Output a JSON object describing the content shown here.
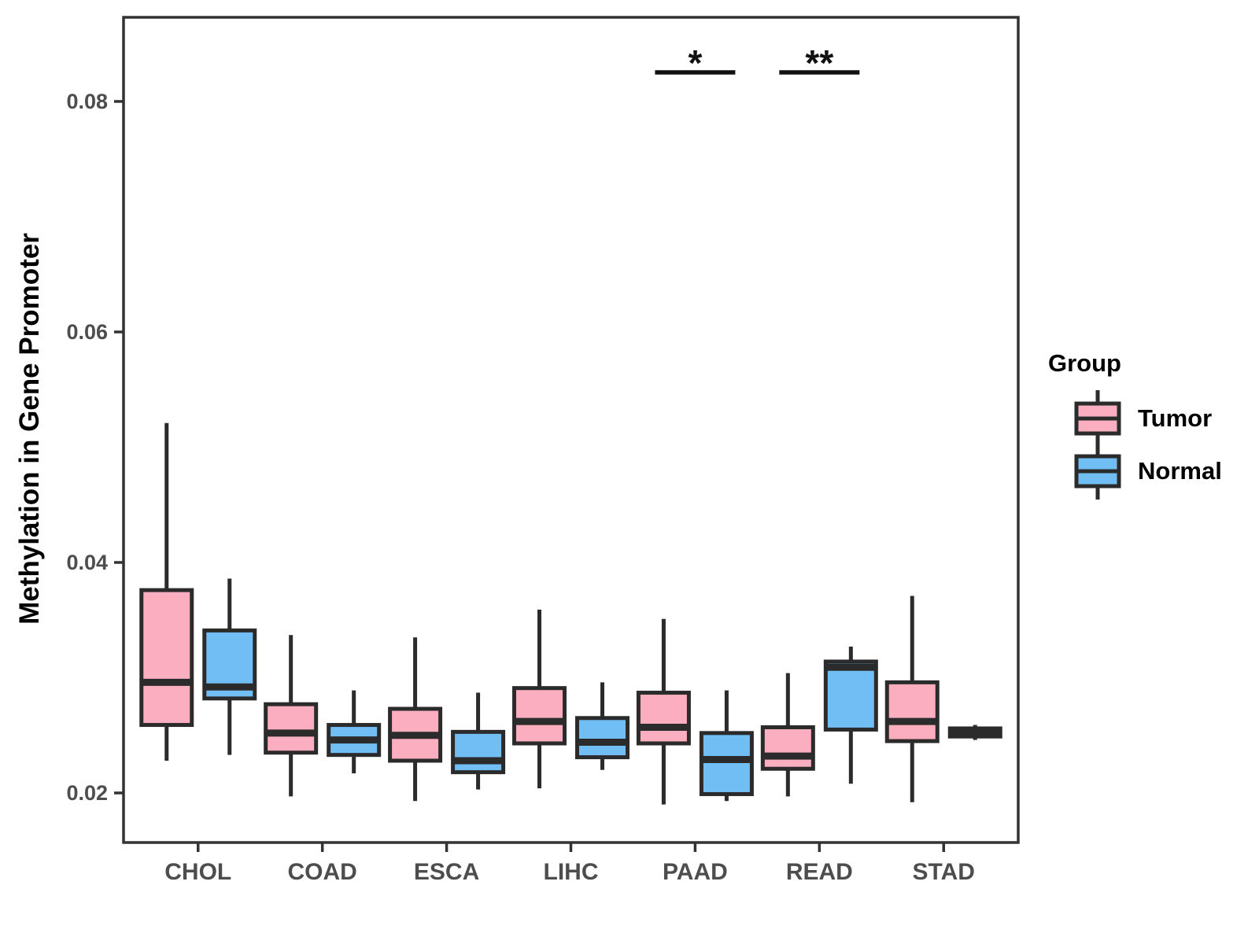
{
  "chart_data": {
    "type": "grouped_boxplot",
    "title": "",
    "xlabel": "",
    "ylabel": "Methylation in Gene Promoter",
    "categories": [
      "CHOL",
      "COAD",
      "ESCA",
      "LIHC",
      "PAAD",
      "READ",
      "STAD"
    ],
    "y_ticks": [
      {
        "value": 0.02,
        "label": "0.02"
      },
      {
        "value": 0.04,
        "label": "0.04"
      },
      {
        "value": 0.06,
        "label": "0.06"
      },
      {
        "value": 0.08,
        "label": "0.08"
      }
    ],
    "ylim": [
      0.0157,
      0.0873
    ],
    "grid": "off",
    "colors": {
      "tumor_fill": "#FCAEC1",
      "normal_fill": "#70BEF4",
      "box_stroke": "#2B2B2B",
      "axis_stroke": "#333333",
      "tick_label": "#4D4D4D",
      "annotation": "#111111"
    },
    "legend": {
      "title": "Group",
      "position": "right",
      "entries": [
        {
          "label": "Tumor",
          "color": "#FCAEC1"
        },
        {
          "label": "Normal",
          "color": "#70BEF4"
        }
      ]
    },
    "series": [
      {
        "name": "Tumor",
        "color": "#FCAEC1",
        "boxes": [
          {
            "category": "CHOL",
            "whisker_low": 0.0228,
            "q1": 0.0259,
            "median": 0.0296,
            "q3": 0.0376,
            "whisker_high": 0.0521
          },
          {
            "category": "COAD",
            "whisker_low": 0.0197,
            "q1": 0.0235,
            "median": 0.0252,
            "q3": 0.0277,
            "whisker_high": 0.0337
          },
          {
            "category": "ESCA",
            "whisker_low": 0.0193,
            "q1": 0.0228,
            "median": 0.025,
            "q3": 0.0273,
            "whisker_high": 0.0335
          },
          {
            "category": "LIHC",
            "whisker_low": 0.0204,
            "q1": 0.0243,
            "median": 0.0262,
            "q3": 0.0291,
            "whisker_high": 0.0359
          },
          {
            "category": "PAAD",
            "whisker_low": 0.019,
            "q1": 0.0243,
            "median": 0.0257,
            "q3": 0.0287,
            "whisker_high": 0.0351
          },
          {
            "category": "READ",
            "whisker_low": 0.0197,
            "q1": 0.0221,
            "median": 0.0232,
            "q3": 0.0257,
            "whisker_high": 0.0304
          },
          {
            "category": "STAD",
            "whisker_low": 0.0192,
            "q1": 0.0245,
            "median": 0.0262,
            "q3": 0.0296,
            "whisker_high": 0.0371
          }
        ]
      },
      {
        "name": "Normal",
        "color": "#70BEF4",
        "boxes": [
          {
            "category": "CHOL",
            "whisker_low": 0.0233,
            "q1": 0.0282,
            "median": 0.0292,
            "q3": 0.0341,
            "whisker_high": 0.0386
          },
          {
            "category": "COAD",
            "whisker_low": 0.0217,
            "q1": 0.0233,
            "median": 0.0246,
            "q3": 0.0259,
            "whisker_high": 0.0289
          },
          {
            "category": "ESCA",
            "whisker_low": 0.0203,
            "q1": 0.0218,
            "median": 0.0228,
            "q3": 0.0253,
            "whisker_high": 0.0287
          },
          {
            "category": "LIHC",
            "whisker_low": 0.022,
            "q1": 0.0231,
            "median": 0.0244,
            "q3": 0.0265,
            "whisker_high": 0.0296
          },
          {
            "category": "PAAD",
            "whisker_low": 0.0193,
            "q1": 0.0199,
            "median": 0.0229,
            "q3": 0.0252,
            "whisker_high": 0.0289
          },
          {
            "category": "READ",
            "whisker_low": 0.0208,
            "q1": 0.0255,
            "median": 0.0309,
            "q3": 0.0314,
            "whisker_high": 0.0327
          },
          {
            "category": "STAD",
            "whisker_low": 0.0246,
            "q1": 0.0249,
            "median": 0.0253,
            "q3": 0.0256,
            "whisker_high": 0.0259
          }
        ]
      }
    ],
    "significance": [
      {
        "category": "PAAD",
        "label": "*"
      },
      {
        "category": "READ",
        "label": "**"
      }
    ]
  }
}
